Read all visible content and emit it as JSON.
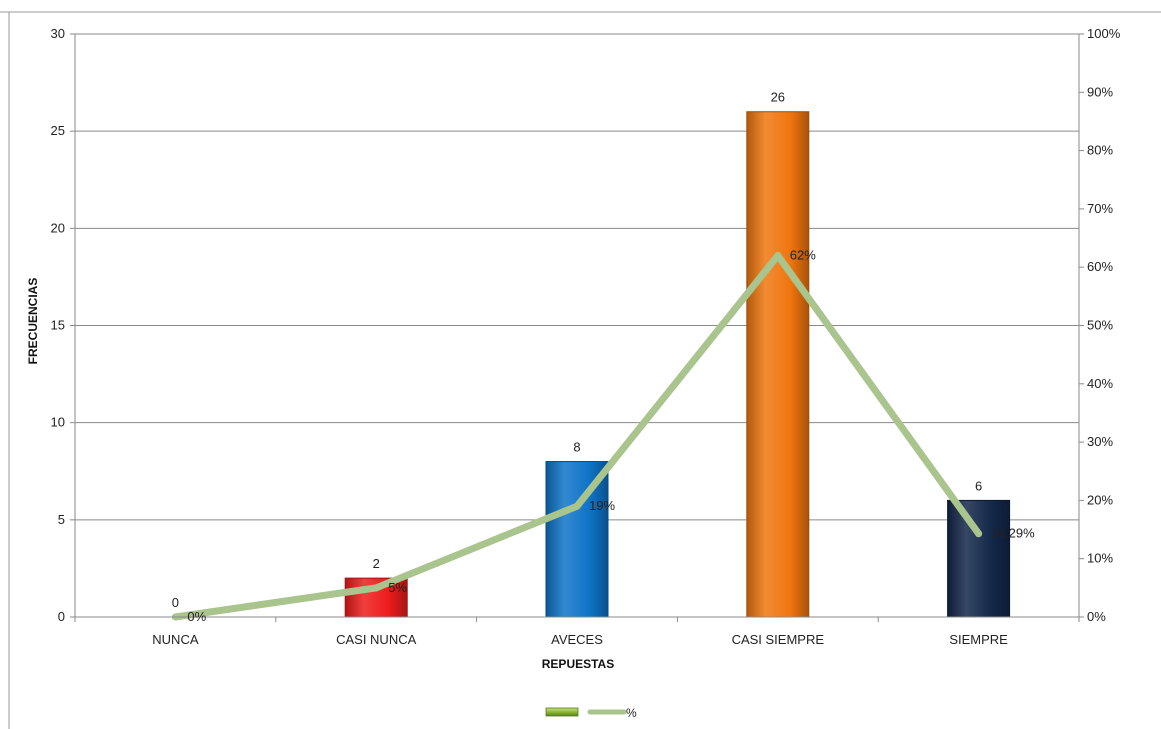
{
  "chart_data": {
    "type": "bar",
    "categories": [
      "NUNCA",
      "CASI NUNCA",
      "AVECES",
      "CASI SIEMPRE",
      "SIEMPRE"
    ],
    "series": [
      {
        "name": "",
        "kind": "bar",
        "axis": "left",
        "values": [
          0,
          2,
          8,
          26,
          6
        ],
        "labels": [
          "0",
          "2",
          "8",
          "26",
          "6"
        ],
        "colors": [
          "#ee1c1c",
          "#ee1c1c",
          "#0f74c8",
          "#f0760f",
          "#14284a"
        ]
      },
      {
        "name": "%",
        "kind": "line",
        "axis": "right",
        "values": [
          0,
          5,
          19,
          62,
          14.29
        ],
        "labels": [
          "0%",
          "5%",
          "19%",
          "62%",
          "14.29%"
        ],
        "color": "#a9c48d"
      }
    ],
    "xlabel": "REPUESTAS",
    "ylabel": "FRECUENCIAS",
    "ylim": [
      0,
      30
    ],
    "yticks": [
      "0",
      "5",
      "10",
      "15",
      "20",
      "25",
      "30"
    ],
    "y2lim": [
      0,
      100
    ],
    "y2ticks": [
      "0%",
      "10%",
      "20%",
      "30%",
      "40%",
      "50%",
      "60%",
      "70%",
      "80%",
      "90%",
      "100%"
    ],
    "grid": true,
    "legend": "bottom",
    "legend_bar_color": "#8cb83a"
  }
}
